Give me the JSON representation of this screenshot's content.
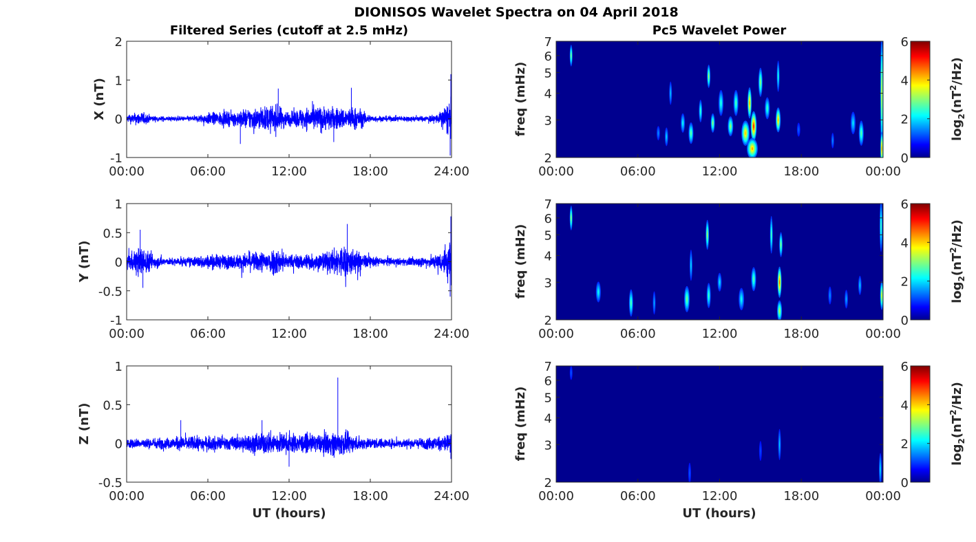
{
  "figure_title": "DIONISOS Wavelet Spectra on 04 April 2018",
  "left_column_title": "Filtered Series (cutoff at 2.5 mHz)",
  "right_column_title": "Pc5 Wavelet Power",
  "time_xlabel": "UT (hours)",
  "freq_ylabel": "freq (mHz)",
  "colorbar_label_base": "log",
  "colorbar_label_sub": "2",
  "colorbar_label_open": "(nT",
  "colorbar_label_sup": "2",
  "colorbar_label_close": "/Hz)",
  "series_line_color": "#0000ff",
  "colormap": "jet",
  "chart_data": [
    {
      "type": "line",
      "panel": "X",
      "ylabel": "X (nT)",
      "x_ticks": [
        "00:00",
        "06:00",
        "12:00",
        "18:00",
        "24:00"
      ],
      "xlim_hours": [
        0,
        24
      ],
      "ylim": [
        -1,
        2
      ],
      "y_ticks": [
        "2",
        "1",
        "0",
        "-1"
      ],
      "y_tick_values": [
        2,
        1,
        0,
        -1
      ],
      "envelope_hours": [
        0,
        1,
        2,
        3,
        4,
        5,
        6,
        7,
        8,
        9,
        10,
        11,
        12,
        13,
        14,
        15,
        16,
        17,
        18,
        19,
        20,
        21,
        22,
        23,
        24
      ],
      "envelope_amplitude": [
        0.15,
        0.3,
        0.12,
        0.1,
        0.1,
        0.12,
        0.25,
        0.3,
        0.3,
        0.45,
        0.5,
        0.6,
        0.3,
        0.45,
        0.55,
        0.5,
        0.45,
        0.5,
        0.15,
        0.12,
        0.12,
        0.12,
        0.12,
        0.2,
        0.9
      ],
      "peak_excursions": [
        {
          "x": 23.95,
          "y": 1.15
        },
        {
          "x": 23.9,
          "y": -0.95
        },
        {
          "x": 11.2,
          "y": 0.78
        },
        {
          "x": 16.6,
          "y": 0.8
        },
        {
          "x": 8.4,
          "y": -0.65
        },
        {
          "x": 15.3,
          "y": -0.6
        }
      ]
    },
    {
      "type": "line",
      "panel": "Y",
      "ylabel": "Y (nT)",
      "x_ticks": [
        "00:00",
        "06:00",
        "12:00",
        "18:00",
        "24:00"
      ],
      "xlim_hours": [
        0,
        24
      ],
      "ylim": [
        -1,
        1
      ],
      "y_ticks": [
        "1",
        "0.5",
        "0",
        "-0.5",
        "-1"
      ],
      "y_tick_values": [
        1,
        0.5,
        0,
        -0.5,
        -1
      ],
      "envelope_hours": [
        0,
        1,
        2,
        3,
        4,
        5,
        6,
        7,
        8,
        9,
        10,
        11,
        12,
        13,
        14,
        15,
        16,
        17,
        18,
        19,
        20,
        21,
        22,
        23,
        24
      ],
      "envelope_amplitude": [
        0.2,
        0.45,
        0.2,
        0.1,
        0.12,
        0.15,
        0.2,
        0.2,
        0.2,
        0.25,
        0.3,
        0.4,
        0.2,
        0.22,
        0.25,
        0.3,
        0.5,
        0.3,
        0.15,
        0.12,
        0.1,
        0.12,
        0.15,
        0.2,
        0.7
      ],
      "peak_excursions": [
        {
          "x": 1.0,
          "y": 0.55
        },
        {
          "x": 16.3,
          "y": 0.65
        },
        {
          "x": 23.95,
          "y": 0.78
        },
        {
          "x": 23.9,
          "y": -0.6
        },
        {
          "x": 1.2,
          "y": -0.45
        }
      ]
    },
    {
      "type": "line",
      "panel": "Z",
      "ylabel": "Z (nT)",
      "x_ticks": [
        "00:00",
        "06:00",
        "12:00",
        "18:00",
        "24:00"
      ],
      "xlim_hours": [
        0,
        24
      ],
      "ylim": [
        -0.5,
        1
      ],
      "y_ticks": [
        "1",
        "0.5",
        "0",
        "-0.5"
      ],
      "y_tick_values": [
        1,
        0.5,
        0,
        -0.5
      ],
      "envelope_hours": [
        0,
        1,
        2,
        3,
        4,
        5,
        6,
        7,
        8,
        9,
        10,
        11,
        12,
        13,
        14,
        15,
        16,
        17,
        18,
        19,
        20,
        21,
        22,
        23,
        24
      ],
      "envelope_amplitude": [
        0.1,
        0.1,
        0.12,
        0.12,
        0.15,
        0.15,
        0.15,
        0.15,
        0.15,
        0.2,
        0.22,
        0.25,
        0.2,
        0.2,
        0.18,
        0.25,
        0.25,
        0.15,
        0.12,
        0.1,
        0.1,
        0.1,
        0.12,
        0.15,
        0.25
      ],
      "peak_excursions": [
        {
          "x": 15.6,
          "y": 0.85
        },
        {
          "x": 4.0,
          "y": 0.3
        },
        {
          "x": 10.0,
          "y": 0.3
        },
        {
          "x": 12.0,
          "y": -0.3
        },
        {
          "x": 23.95,
          "y": -0.2
        }
      ]
    },
    {
      "type": "heatmap",
      "panel": "X wavelet",
      "ylabel": "freq (mHz)",
      "x_ticks": [
        "00:00",
        "06:00",
        "12:00",
        "18:00",
        "00:00"
      ],
      "xlim_hours": [
        0,
        24
      ],
      "ylim_mhz": [
        2,
        7
      ],
      "y_scale": "log",
      "y_ticks": [
        "7",
        "6",
        "5",
        "4",
        "3",
        "2"
      ],
      "y_tick_values": [
        7,
        6,
        5,
        4,
        3,
        2
      ],
      "colorbar_range": [
        0,
        6
      ],
      "colorbar_ticks": [
        "6",
        "4",
        "2",
        "0"
      ],
      "bursts": [
        {
          "t": 1.1,
          "f": 6.0,
          "p": 2.8,
          "dt": 0.07,
          "df": 0.7
        },
        {
          "t": 7.5,
          "f": 2.6,
          "p": 1.0,
          "dt": 0.12,
          "df": 0.2
        },
        {
          "t": 8.1,
          "f": 2.5,
          "p": 1.5,
          "dt": 0.12,
          "df": 0.25
        },
        {
          "t": 8.4,
          "f": 4.0,
          "p": 1.4,
          "dt": 0.06,
          "df": 0.5
        },
        {
          "t": 9.3,
          "f": 2.9,
          "p": 1.8,
          "dt": 0.15,
          "df": 0.3
        },
        {
          "t": 9.9,
          "f": 2.6,
          "p": 2.5,
          "dt": 0.18,
          "df": 0.3
        },
        {
          "t": 10.6,
          "f": 3.3,
          "p": 2.2,
          "dt": 0.12,
          "df": 0.4
        },
        {
          "t": 11.2,
          "f": 4.8,
          "p": 3.0,
          "dt": 0.12,
          "df": 0.6
        },
        {
          "t": 11.5,
          "f": 2.9,
          "p": 2.8,
          "dt": 0.15,
          "df": 0.3
        },
        {
          "t": 12.1,
          "f": 3.6,
          "p": 2.0,
          "dt": 0.18,
          "df": 0.5
        },
        {
          "t": 12.8,
          "f": 2.8,
          "p": 2.8,
          "dt": 0.2,
          "df": 0.3
        },
        {
          "t": 13.2,
          "f": 3.6,
          "p": 2.3,
          "dt": 0.18,
          "df": 0.5
        },
        {
          "t": 13.9,
          "f": 2.6,
          "p": 3.8,
          "dt": 0.3,
          "df": 0.35
        },
        {
          "t": 14.5,
          "f": 2.8,
          "p": 5.0,
          "dt": 0.22,
          "df": 0.45
        },
        {
          "t": 14.2,
          "f": 3.6,
          "p": 4.2,
          "dt": 0.15,
          "df": 0.6
        },
        {
          "t": 14.4,
          "f": 2.2,
          "p": 4.0,
          "dt": 0.4,
          "df": 0.25
        },
        {
          "t": 15.0,
          "f": 4.5,
          "p": 2.8,
          "dt": 0.15,
          "df": 0.7
        },
        {
          "t": 15.5,
          "f": 3.4,
          "p": 2.2,
          "dt": 0.18,
          "df": 0.4
        },
        {
          "t": 16.3,
          "f": 3.0,
          "p": 4.0,
          "dt": 0.18,
          "df": 0.4
        },
        {
          "t": 16.3,
          "f": 4.8,
          "p": 2.0,
          "dt": 0.1,
          "df": 0.8
        },
        {
          "t": 17.8,
          "f": 2.7,
          "p": 0.7,
          "dt": 0.12,
          "df": 0.2
        },
        {
          "t": 20.3,
          "f": 2.4,
          "p": 1.0,
          "dt": 0.1,
          "df": 0.2
        },
        {
          "t": 21.8,
          "f": 2.9,
          "p": 1.6,
          "dt": 0.18,
          "df": 0.35
        },
        {
          "t": 22.4,
          "f": 2.6,
          "p": 2.4,
          "dt": 0.18,
          "df": 0.35
        },
        {
          "t": 23.9,
          "f": 4.0,
          "p": 3.5,
          "dt": 0.1,
          "df": 2.2
        },
        {
          "t": 23.9,
          "f": 2.2,
          "p": 4.5,
          "dt": 0.1,
          "df": 0.4
        }
      ]
    },
    {
      "type": "heatmap",
      "panel": "Y wavelet",
      "ylabel": "freq (mHz)",
      "x_ticks": [
        "00:00",
        "06:00",
        "12:00",
        "18:00",
        "00:00"
      ],
      "xlim_hours": [
        0,
        24
      ],
      "ylim_mhz": [
        2,
        7
      ],
      "y_scale": "log",
      "y_ticks": [
        "7",
        "6",
        "5",
        "4",
        "3",
        "2"
      ],
      "y_tick_values": [
        7,
        6,
        5,
        4,
        3,
        2
      ],
      "colorbar_range": [
        0,
        6
      ],
      "colorbar_ticks": [
        "6",
        "4",
        "2",
        "0"
      ],
      "bursts": [
        {
          "t": 1.1,
          "f": 6.0,
          "p": 3.0,
          "dt": 0.07,
          "df": 0.8
        },
        {
          "t": 3.1,
          "f": 2.7,
          "p": 1.8,
          "dt": 0.18,
          "df": 0.3
        },
        {
          "t": 5.5,
          "f": 2.4,
          "p": 2.4,
          "dt": 0.15,
          "df": 0.35
        },
        {
          "t": 7.2,
          "f": 2.4,
          "p": 1.2,
          "dt": 0.1,
          "df": 0.3
        },
        {
          "t": 9.6,
          "f": 2.5,
          "p": 2.6,
          "dt": 0.2,
          "df": 0.35
        },
        {
          "t": 9.9,
          "f": 3.6,
          "p": 1.6,
          "dt": 0.1,
          "df": 0.6
        },
        {
          "t": 11.1,
          "f": 5.0,
          "p": 3.0,
          "dt": 0.12,
          "df": 0.8
        },
        {
          "t": 11.2,
          "f": 2.6,
          "p": 2.2,
          "dt": 0.15,
          "df": 0.35
        },
        {
          "t": 12.0,
          "f": 3.0,
          "p": 1.6,
          "dt": 0.15,
          "df": 0.3
        },
        {
          "t": 13.6,
          "f": 2.5,
          "p": 1.8,
          "dt": 0.2,
          "df": 0.3
        },
        {
          "t": 14.5,
          "f": 3.1,
          "p": 2.4,
          "dt": 0.18,
          "df": 0.4
        },
        {
          "t": 15.8,
          "f": 5.0,
          "p": 2.4,
          "dt": 0.1,
          "df": 1.0
        },
        {
          "t": 16.4,
          "f": 3.0,
          "p": 4.6,
          "dt": 0.15,
          "df": 0.5
        },
        {
          "t": 16.5,
          "f": 4.5,
          "p": 2.8,
          "dt": 0.12,
          "df": 0.6
        },
        {
          "t": 16.4,
          "f": 2.2,
          "p": 3.0,
          "dt": 0.18,
          "df": 0.25
        },
        {
          "t": 20.1,
          "f": 2.6,
          "p": 1.0,
          "dt": 0.12,
          "df": 0.25
        },
        {
          "t": 21.3,
          "f": 2.5,
          "p": 1.2,
          "dt": 0.12,
          "df": 0.25
        },
        {
          "t": 22.3,
          "f": 2.9,
          "p": 1.4,
          "dt": 0.12,
          "df": 0.3
        },
        {
          "t": 23.9,
          "f": 2.6,
          "p": 3.5,
          "dt": 0.12,
          "df": 0.4
        },
        {
          "t": 23.85,
          "f": 5.5,
          "p": 2.4,
          "dt": 0.08,
          "df": 1.5
        }
      ]
    },
    {
      "type": "heatmap",
      "panel": "Z wavelet",
      "ylabel": "freq (mHz)",
      "x_ticks": [
        "00:00",
        "06:00",
        "12:00",
        "18:00",
        "00:00"
      ],
      "xlim_hours": [
        0,
        24
      ],
      "ylim_mhz": [
        2,
        7
      ],
      "y_scale": "log",
      "y_ticks": [
        "7",
        "6",
        "5",
        "4",
        "3",
        "2"
      ],
      "y_tick_values": [
        7,
        6,
        5,
        4,
        3,
        2
      ],
      "colorbar_range": [
        0,
        6
      ],
      "colorbar_ticks": [
        "6",
        "4",
        "2",
        "0"
      ],
      "bursts": [
        {
          "t": 1.1,
          "f": 6.5,
          "p": 0.6,
          "dt": 0.05,
          "df": 0.5
        },
        {
          "t": 9.8,
          "f": 2.2,
          "p": 0.6,
          "dt": 0.08,
          "df": 0.25
        },
        {
          "t": 16.4,
          "f": 3.0,
          "p": 1.4,
          "dt": 0.1,
          "df": 0.5
        },
        {
          "t": 15.0,
          "f": 2.8,
          "p": 0.5,
          "dt": 0.08,
          "df": 0.3
        },
        {
          "t": 23.8,
          "f": 2.3,
          "p": 1.6,
          "dt": 0.1,
          "df": 0.4
        }
      ]
    }
  ]
}
